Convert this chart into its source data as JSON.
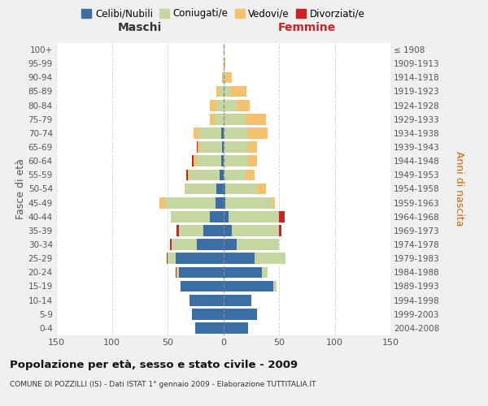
{
  "age_groups": [
    "0-4",
    "5-9",
    "10-14",
    "15-19",
    "20-24",
    "25-29",
    "30-34",
    "35-39",
    "40-44",
    "45-49",
    "50-54",
    "55-59",
    "60-64",
    "65-69",
    "70-74",
    "75-79",
    "80-84",
    "85-89",
    "90-94",
    "95-99",
    "100+"
  ],
  "birth_years": [
    "2004-2008",
    "1999-2003",
    "1994-1998",
    "1989-1993",
    "1984-1988",
    "1979-1983",
    "1974-1978",
    "1969-1973",
    "1964-1968",
    "1959-1963",
    "1954-1958",
    "1949-1953",
    "1944-1948",
    "1939-1943",
    "1934-1938",
    "1929-1933",
    "1924-1928",
    "1919-1923",
    "1914-1918",
    "1909-1913",
    "≤ 1908"
  ],
  "colors": {
    "celibi": "#3a6ea5",
    "coniugati": "#c5d6a0",
    "vedovi": "#f5c16c",
    "divorziati": "#cc2222"
  },
  "male": {
    "celibi": [
      25,
      28,
      30,
      38,
      40,
      43,
      24,
      18,
      12,
      7,
      6,
      3,
      2,
      1,
      2,
      0,
      0,
      0,
      0,
      0,
      0
    ],
    "coniugati": [
      0,
      0,
      0,
      0,
      2,
      7,
      22,
      22,
      35,
      45,
      28,
      28,
      22,
      20,
      20,
      8,
      6,
      3,
      0,
      0,
      0
    ],
    "vedovi": [
      0,
      0,
      0,
      0,
      0,
      0,
      0,
      0,
      0,
      5,
      1,
      1,
      3,
      2,
      5,
      4,
      6,
      3,
      1,
      0,
      0
    ],
    "divorziati": [
      0,
      0,
      0,
      0,
      1,
      1,
      2,
      2,
      0,
      0,
      0,
      1,
      1,
      1,
      0,
      0,
      0,
      0,
      0,
      0,
      0
    ]
  },
  "female": {
    "celibi": [
      22,
      30,
      25,
      45,
      35,
      28,
      12,
      8,
      5,
      2,
      2,
      0,
      0,
      0,
      0,
      0,
      0,
      0,
      0,
      0,
      0
    ],
    "coniugati": [
      0,
      0,
      0,
      3,
      5,
      28,
      38,
      42,
      45,
      42,
      28,
      20,
      22,
      22,
      22,
      20,
      12,
      6,
      2,
      0,
      0
    ],
    "vedovi": [
      0,
      0,
      0,
      0,
      0,
      0,
      0,
      0,
      0,
      2,
      8,
      8,
      8,
      8,
      18,
      18,
      12,
      15,
      6,
      2,
      1
    ],
    "divorziati": [
      0,
      0,
      0,
      0,
      0,
      0,
      0,
      2,
      5,
      0,
      0,
      0,
      0,
      0,
      0,
      0,
      0,
      0,
      0,
      0,
      0
    ]
  },
  "xlim": 150,
  "title": "Popolazione per età, sesso e stato civile - 2009",
  "subtitle": "COMUNE DI POZZILLI (IS) - Dati ISTAT 1° gennaio 2009 - Elaborazione TUTTITALIA.IT",
  "xlabel_left": "Maschi",
  "xlabel_right": "Femmine",
  "ylabel_left": "Fasce di età",
  "ylabel_right": "Anni di nascita",
  "legend_labels": [
    "Celibi/Nubili",
    "Coniugati/e",
    "Vedovi/e",
    "Divorziati/e"
  ],
  "bg_color": "#f0f0f0",
  "plot_bg": "#ffffff",
  "grid_color": "#cccccc"
}
